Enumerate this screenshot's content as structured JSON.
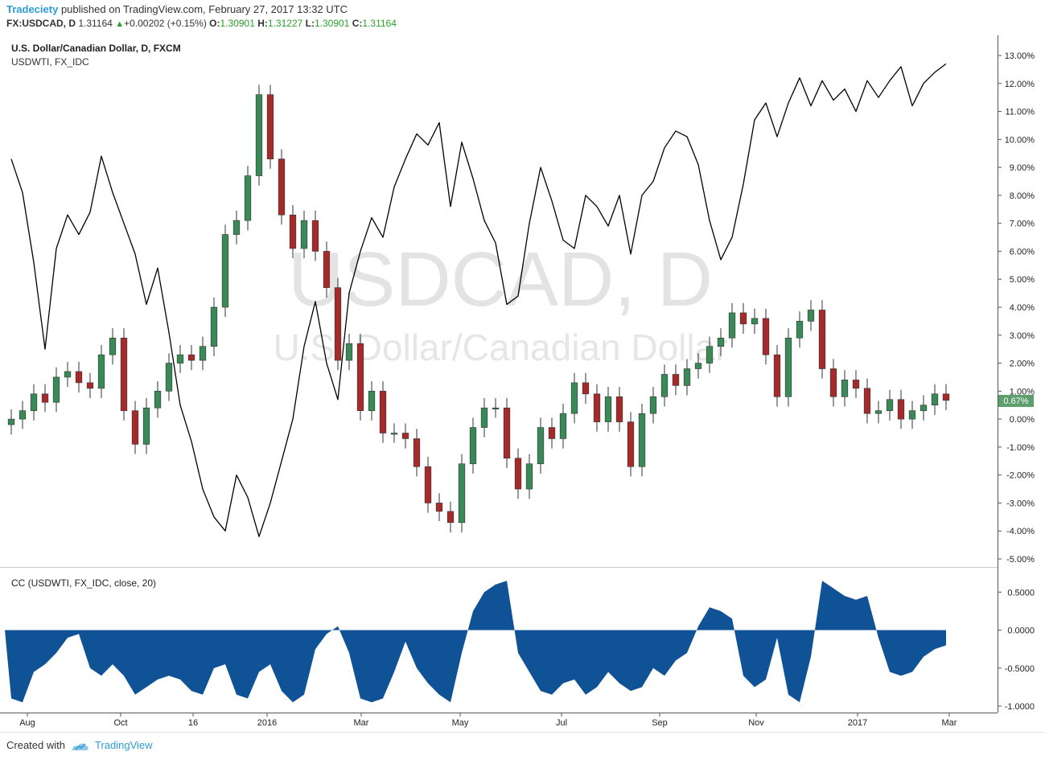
{
  "header": {
    "author": "Tradeciety",
    "published_text": "published on TradingView.com, February 27, 2017 13:32 UTC",
    "symbol": "FX:USDCAD, D",
    "last_price": "1.31164",
    "change": "+0.00202 (+0.15%)",
    "o_label": "O:",
    "o_value": "1.30901",
    "h_label": "H:",
    "h_value": "1.31227",
    "l_label": "L:",
    "l_value": "1.30901",
    "c_label": "C:",
    "c_value": "1.31164"
  },
  "main_pane": {
    "series_title": "U.S. Dollar/Canadian Dollar, D, FXCM",
    "compare_title": "USDWTI, FX_IDC",
    "watermark_symbol": "USDCAD, D",
    "watermark_name": "U.S. Dollar/Canadian Dollar",
    "current_badge": "0.67%"
  },
  "indicator_pane": {
    "title": "CC (USDWTI, FX_IDC, close, 20)"
  },
  "footer": {
    "created_with": "Created with",
    "brand": "TradingView"
  },
  "colors": {
    "up": "#3a8a57",
    "down": "#a52a2a",
    "compare_line": "#000000",
    "indicator_fill": "#0f5296",
    "badge_bg": "#5e9e6e",
    "accent": "#2d9bd6"
  },
  "chart_data": [
    {
      "type": "line",
      "title": "U.S. Dollar/Canadian Dollar, D, FXCM",
      "y_format": "percent",
      "ylim": [
        -5.0,
        13.0
      ],
      "y_ticks": [
        "13.00%",
        "12.00%",
        "11.00%",
        "10.00%",
        "9.00%",
        "8.00%",
        "7.00%",
        "6.00%",
        "5.00%",
        "4.00%",
        "3.00%",
        "2.00%",
        "1.00%",
        "0.00%",
        "-1.00%",
        "-2.00%",
        "-3.00%",
        "-4.00%",
        "-5.00%"
      ],
      "x_ticks": [
        "Aug",
        "Oct",
        "16",
        "2016",
        "Mar",
        "May",
        "Jul",
        "Sep",
        "Nov",
        "2017",
        "Mar"
      ],
      "series": [
        {
          "name": "U.S. Dollar/Canadian Dollar, D, FXCM",
          "style": "candles",
          "x": [
            "Jul 27",
            "Aug 3",
            "Aug 10",
            "Aug 17",
            "Aug 24",
            "Aug 31",
            "Sep 7",
            "Sep 14",
            "Sep 21",
            "Sep 28",
            "Oct 5",
            "Oct 12",
            "Oct 19",
            "Oct 26",
            "Nov 2",
            "Nov 9",
            "Nov 16",
            "Nov 23",
            "Nov 30",
            "Dec 7",
            "Dec 14",
            "Dec 21",
            "Dec 28",
            "Jan 4",
            "Jan 11",
            "Jan 18",
            "Jan 25",
            "Feb 1",
            "Feb 8",
            "Feb 15",
            "Feb 22",
            "Feb 29",
            "Mar 7",
            "Mar 14",
            "Mar 21",
            "Mar 28",
            "Apr 4",
            "Apr 11",
            "Apr 18",
            "Apr 25",
            "May 2",
            "May 9",
            "May 16",
            "May 23",
            "May 30",
            "Jun 6",
            "Jun 13",
            "Jun 20",
            "Jun 27",
            "Jul 4",
            "Jul 11",
            "Jul 18",
            "Jul 25",
            "Aug 1",
            "Aug 8",
            "Aug 15",
            "Aug 22",
            "Aug 29",
            "Sep 5",
            "Sep 12",
            "Sep 19",
            "Sep 26",
            "Oct 3",
            "Oct 10",
            "Oct 17",
            "Oct 24",
            "Oct 31",
            "Nov 7",
            "Nov 14",
            "Nov 21",
            "Nov 28",
            "Dec 5",
            "Dec 12",
            "Dec 19",
            "Dec 26",
            "Jan 2",
            "Jan 9",
            "Jan 16",
            "Jan 23",
            "Jan 30",
            "Feb 6",
            "Feb 13",
            "Feb 20",
            "Feb 27"
          ],
          "values": [
            0.0,
            0.3,
            0.9,
            0.6,
            1.5,
            1.7,
            1.3,
            1.1,
            2.3,
            2.9,
            0.3,
            -0.9,
            0.4,
            1.0,
            2.0,
            2.3,
            2.1,
            2.6,
            4.0,
            6.6,
            7.1,
            8.7,
            11.6,
            9.3,
            7.3,
            6.1,
            7.1,
            6.0,
            4.7,
            2.1,
            2.7,
            0.3,
            1.0,
            -0.5,
            -0.5,
            -0.7,
            -1.7,
            -3.0,
            -3.3,
            -3.7,
            -1.6,
            -0.3,
            0.4,
            0.4,
            -1.4,
            -2.5,
            -1.6,
            -0.3,
            -0.7,
            0.2,
            1.3,
            0.9,
            -0.1,
            0.8,
            -0.1,
            -1.7,
            0.2,
            0.8,
            1.6,
            1.2,
            1.8,
            2.0,
            2.6,
            2.9,
            3.8,
            3.4,
            3.6,
            2.3,
            0.8,
            2.9,
            3.5,
            3.9,
            1.8,
            0.8,
            1.4,
            1.1,
            0.2,
            0.3,
            0.7,
            0.0,
            0.3,
            0.5,
            0.9,
            0.67
          ]
        },
        {
          "name": "USDWTI, FX_IDC",
          "style": "line",
          "x": [
            "Jul 27",
            "Aug 3",
            "Aug 10",
            "Aug 17",
            "Aug 24",
            "Aug 31",
            "Sep 7",
            "Sep 14",
            "Sep 21",
            "Sep 28",
            "Oct 5",
            "Oct 12",
            "Oct 19",
            "Oct 26",
            "Nov 2",
            "Nov 9",
            "Nov 16",
            "Nov 23",
            "Nov 30",
            "Dec 7",
            "Dec 14",
            "Dec 21",
            "Dec 28",
            "Jan 4",
            "Jan 11",
            "Jan 18",
            "Jan 25",
            "Feb 1",
            "Feb 8",
            "Feb 15",
            "Feb 22",
            "Feb 29",
            "Mar 7",
            "Mar 14",
            "Mar 21",
            "Mar 28",
            "Apr 4",
            "Apr 11",
            "Apr 18",
            "Apr 25",
            "May 2",
            "May 9",
            "May 16",
            "May 23",
            "May 30",
            "Jun 6",
            "Jun 13",
            "Jun 20",
            "Jun 27",
            "Jul 4",
            "Jul 11",
            "Jul 18",
            "Jul 25",
            "Aug 1",
            "Aug 8",
            "Aug 15",
            "Aug 22",
            "Aug 29",
            "Sep 5",
            "Sep 12",
            "Sep 19",
            "Sep 26",
            "Oct 3",
            "Oct 10",
            "Oct 17",
            "Oct 24",
            "Oct 31",
            "Nov 7",
            "Nov 14",
            "Nov 21",
            "Nov 28",
            "Dec 5",
            "Dec 12",
            "Dec 19",
            "Dec 26",
            "Jan 2",
            "Jan 9",
            "Jan 16",
            "Jan 23",
            "Jan 30",
            "Feb 6",
            "Feb 13",
            "Feb 20",
            "Feb 27"
          ],
          "values": [
            9.3,
            8.1,
            5.6,
            2.5,
            6.1,
            7.3,
            6.6,
            7.4,
            9.4,
            8.1,
            7.0,
            5.9,
            4.1,
            5.4,
            3.1,
            0.5,
            -0.8,
            -2.5,
            -3.5,
            -4.0,
            -2.0,
            -2.8,
            -4.2,
            -3.0,
            -1.5,
            0.0,
            2.6,
            4.2,
            2.0,
            0.7,
            4.5,
            6.0,
            7.2,
            6.5,
            8.3,
            9.3,
            10.2,
            9.8,
            10.6,
            7.6,
            9.9,
            8.6,
            7.1,
            6.3,
            4.1,
            4.4,
            7.0,
            9.0,
            7.8,
            6.4,
            6.1,
            8.0,
            7.6,
            6.9,
            8.0,
            5.9,
            8.0,
            8.5,
            9.7,
            10.3,
            10.1,
            9.1,
            7.1,
            5.7,
            6.5,
            8.4,
            10.7,
            11.3,
            10.1,
            11.3,
            12.2,
            11.2,
            12.1,
            11.4,
            11.8,
            11.0,
            12.1,
            11.5,
            12.1,
            12.6,
            11.2,
            12.0,
            12.4,
            12.7
          ]
        }
      ]
    },
    {
      "type": "area",
      "title": "CC (USDWTI, FX_IDC, close, 20)",
      "ylim": [
        -1.0,
        0.75
      ],
      "y_ticks": [
        "0.5000",
        "0.0000",
        "-0.5000",
        "-1.0000"
      ],
      "x_ticks": [
        "Aug",
        "Oct",
        "16",
        "2016",
        "Mar",
        "May",
        "Jul",
        "Sep",
        "Nov",
        "2017",
        "Mar"
      ],
      "x": [
        "Jul 27",
        "Aug 3",
        "Aug 10",
        "Aug 17",
        "Aug 24",
        "Aug 31",
        "Sep 7",
        "Sep 14",
        "Sep 21",
        "Sep 28",
        "Oct 5",
        "Oct 12",
        "Oct 19",
        "Oct 26",
        "Nov 2",
        "Nov 9",
        "Nov 16",
        "Nov 23",
        "Nov 30",
        "Dec 7",
        "Dec 14",
        "Dec 21",
        "Dec 28",
        "Jan 4",
        "Jan 11",
        "Jan 18",
        "Jan 25",
        "Feb 1",
        "Feb 8",
        "Feb 15",
        "Feb 22",
        "Feb 29",
        "Mar 7",
        "Mar 14",
        "Mar 21",
        "Mar 28",
        "Apr 4",
        "Apr 11",
        "Apr 18",
        "Apr 25",
        "May 2",
        "May 9",
        "May 16",
        "May 23",
        "May 30",
        "Jun 6",
        "Jun 13",
        "Jun 20",
        "Jun 27",
        "Jul 4",
        "Jul 11",
        "Jul 18",
        "Jul 25",
        "Aug 1",
        "Aug 8",
        "Aug 15",
        "Aug 22",
        "Aug 29",
        "Sep 5",
        "Sep 12",
        "Sep 19",
        "Sep 26",
        "Oct 3",
        "Oct 10",
        "Oct 17",
        "Oct 24",
        "Oct 31",
        "Nov 7",
        "Nov 14",
        "Nov 21",
        "Nov 28",
        "Dec 5",
        "Dec 12",
        "Dec 19",
        "Dec 26",
        "Jan 2",
        "Jan 9",
        "Jan 16",
        "Jan 23",
        "Jan 30",
        "Feb 6",
        "Feb 13",
        "Feb 20",
        "Feb 27"
      ],
      "values": [
        -0.9,
        -0.95,
        -0.55,
        -0.45,
        -0.3,
        -0.1,
        -0.05,
        -0.5,
        -0.6,
        -0.45,
        -0.6,
        -0.85,
        -0.75,
        -0.65,
        -0.6,
        -0.65,
        -0.8,
        -0.85,
        -0.5,
        -0.45,
        -0.85,
        -0.9,
        -0.55,
        -0.45,
        -0.8,
        -0.95,
        -0.85,
        -0.25,
        -0.05,
        0.05,
        -0.3,
        -0.9,
        -0.95,
        -0.9,
        -0.55,
        -0.15,
        -0.5,
        -0.7,
        -0.85,
        -0.95,
        -0.3,
        0.25,
        0.5,
        0.6,
        0.65,
        -0.3,
        -0.55,
        -0.8,
        -0.85,
        -0.7,
        -0.65,
        -0.85,
        -0.75,
        -0.55,
        -0.7,
        -0.8,
        -0.75,
        -0.5,
        -0.6,
        -0.4,
        -0.3,
        0.05,
        0.3,
        0.25,
        0.15,
        -0.6,
        -0.75,
        -0.65,
        -0.1,
        -0.85,
        -0.95,
        -0.35,
        0.65,
        0.55,
        0.45,
        0.4,
        0.45,
        -0.1,
        -0.55,
        -0.6,
        -0.55,
        -0.35,
        -0.25,
        -0.2
      ]
    }
  ]
}
